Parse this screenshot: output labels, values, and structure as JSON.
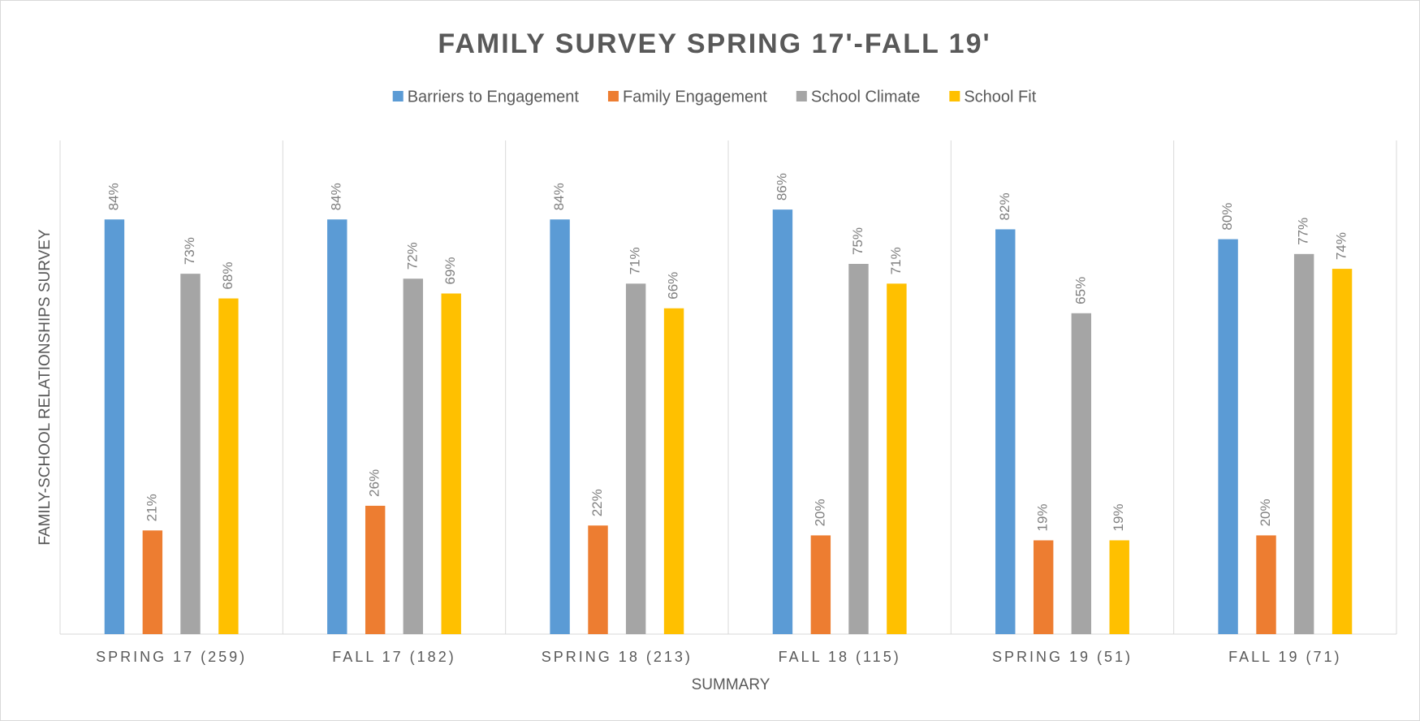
{
  "chart_data": {
    "type": "bar",
    "title": "FAMILY SURVEY SPRING 17'-FALL 19'",
    "x_label": "SUMMARY",
    "y_label": "FAMILY-SCHOOL RELATIONSHIPS SURVEY",
    "categories": [
      "SPRING 17 (259)",
      "FALL 17 (182)",
      "SPRING 18 (213)",
      "FALL 18 (115)",
      "SPRING 19 (51)",
      "FALL 19 (71)"
    ],
    "ylim": [
      0,
      100
    ],
    "series": [
      {
        "name": "Barriers to Engagement",
        "color": "#5b9bd5",
        "values": [
          84,
          84,
          84,
          86,
          82,
          80
        ],
        "value_labels": [
          "84%",
          "84%",
          "84%",
          "86%",
          "82%",
          "80%"
        ]
      },
      {
        "name": "Family Engagement",
        "color": "#ed7d31",
        "values": [
          21,
          26,
          22,
          20,
          19,
          20
        ],
        "value_labels": [
          "21%",
          "26%",
          "22%",
          "20%",
          "19%",
          "20%"
        ]
      },
      {
        "name": "School Climate",
        "color": "#a5a5a5",
        "values": [
          73,
          72,
          71,
          75,
          65,
          77
        ],
        "value_labels": [
          "73%",
          "72%",
          "71%",
          "75%",
          "65%",
          "77%"
        ]
      },
      {
        "name": "School Fit",
        "color": "#ffc000",
        "values": [
          68,
          69,
          66,
          71,
          19,
          74
        ],
        "value_labels": [
          "68%",
          "69%",
          "66%",
          "71%",
          "19%",
          "74%"
        ]
      }
    ]
  }
}
